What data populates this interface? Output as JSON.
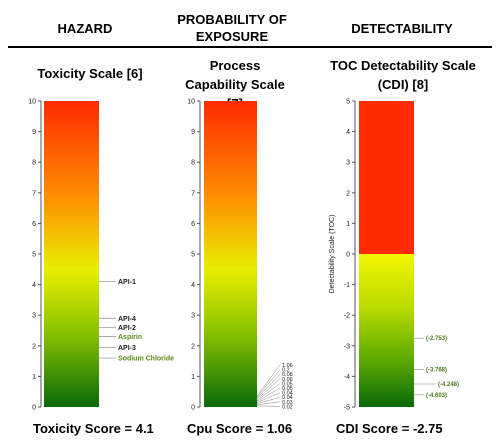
{
  "headers": {
    "hazard": "HAZARD",
    "probability": "PROBABILITY OF EXPOSURE",
    "detectability": "DETECTABILITY"
  },
  "scales": {
    "toxicity": {
      "title": "Toxicity Scale [6]",
      "ticks": [
        "10",
        "9",
        "8",
        "7",
        "6",
        "5",
        "4",
        "3",
        "2",
        "1",
        "0"
      ],
      "labels": [
        {
          "text": "API-1",
          "value": 4.1,
          "color": "#222222"
        },
        {
          "text": "API-4",
          "value": 2.9,
          "color": "#222222"
        },
        {
          "text": "API-2",
          "value": 2.6,
          "color": "#222222"
        },
        {
          "text": "Aspirin",
          "value": 2.3,
          "color": "#5a8a1a"
        },
        {
          "text": "API-3",
          "value": 1.95,
          "color": "#222222"
        },
        {
          "text": "Sodium Chloride",
          "value": 1.6,
          "color": "#5a8a1a"
        }
      ],
      "score": "Toxicity Score  = 4.1"
    },
    "process": {
      "title": "Process Capability Scale [7]",
      "ticks": [
        "10",
        "9",
        "8",
        "7",
        "6",
        "5",
        "4",
        "3",
        "2",
        "1",
        "0"
      ],
      "labels": [
        "1.06",
        "0.2",
        "0.08",
        "0.06",
        "0.05",
        "0.05",
        "0.04",
        "0.04",
        "0.03",
        "0.02"
      ],
      "score": "Cpu Score = 1.06"
    },
    "toc": {
      "title": "TOC Detectability Scale (CDI) [8]",
      "ticks": [
        "5",
        "4",
        "3",
        "2",
        "1",
        "0",
        "-1",
        "-2",
        "-3",
        "-4",
        "-5"
      ],
      "axis_label": "Detectability Scale (TOC)",
      "labels": [
        {
          "text": "(-2.753)",
          "value": -2.753
        },
        {
          "text": "(-3.768)",
          "value": -3.768
        },
        {
          "text": "(-4.248)",
          "value": -4.248
        },
        {
          "text": "(-4.603)",
          "value": -4.603
        }
      ],
      "score": "CDI Score = -2.75"
    }
  },
  "colors": {
    "red": "#ff2a00",
    "orange": "#ff9900",
    "yellow": "#e8f000",
    "green": "#6ab800",
    "dark_green": "#0a6a0a",
    "label_green": "#4a7a1a"
  }
}
